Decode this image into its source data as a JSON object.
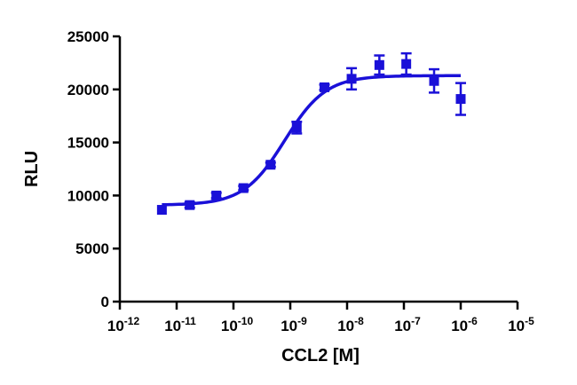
{
  "chart_data": {
    "type": "scatter",
    "title": "",
    "xlabel": "CCL2 [M]",
    "ylabel": "RLU",
    "x_scale": "log",
    "xlim": [
      1e-12,
      1e-05
    ],
    "ylim": [
      0,
      25000
    ],
    "x_ticks": [
      {
        "base": "10",
        "exp": "-12"
      },
      {
        "base": "10",
        "exp": "-11"
      },
      {
        "base": "10",
        "exp": "-10"
      },
      {
        "base": "10",
        "exp": "-9"
      },
      {
        "base": "10",
        "exp": "-8"
      },
      {
        "base": "10",
        "exp": "-7"
      },
      {
        "base": "10",
        "exp": "-6"
      },
      {
        "base": "10",
        "exp": "-5"
      }
    ],
    "y_ticks": [
      "0",
      "5000",
      "10000",
      "15000",
      "20000",
      "25000"
    ],
    "grid": false,
    "color": "#1a10d8",
    "series": [
      {
        "points": [
          {
            "x": 5.5e-12,
            "y": 8650,
            "err": 0
          },
          {
            "x": 1.7e-11,
            "y": 9100,
            "err": 250
          },
          {
            "x": 5e-11,
            "y": 10000,
            "err": 250
          },
          {
            "x": 1.5e-10,
            "y": 10700,
            "err": 200
          },
          {
            "x": 4.5e-10,
            "y": 12900,
            "err": 200
          },
          {
            "x": 1.3e-09,
            "y": 16400,
            "err": 550
          },
          {
            "x": 4e-09,
            "y": 20200,
            "err": 250
          },
          {
            "x": 1.2e-08,
            "y": 21000,
            "err": 1000
          },
          {
            "x": 3.7e-08,
            "y": 22300,
            "err": 900
          },
          {
            "x": 1.1e-07,
            "y": 22400,
            "err": 1000
          },
          {
            "x": 3.4e-07,
            "y": 20800,
            "err": 1100
          },
          {
            "x": 1e-06,
            "y": 19100,
            "err": 1500
          }
        ],
        "fit": {
          "model": "4PL",
          "bottom": 9100,
          "top": 21300,
          "ec50": 8e-10,
          "hill": 1.2,
          "x_range": [
            5.5e-12,
            1e-06
          ]
        }
      }
    ]
  }
}
